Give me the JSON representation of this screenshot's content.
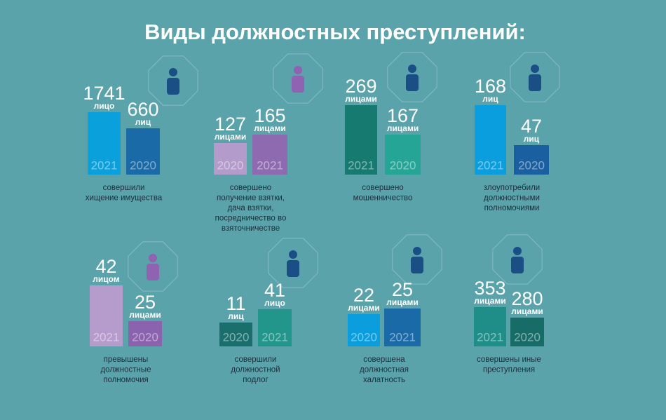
{
  "title": "Виды должностных преступлений:",
  "panels": [
    {
      "bars": [
        {
          "value": 1741,
          "unit": "лицо",
          "year": 2021
        },
        {
          "value": 660,
          "unit": "лиц",
          "year": 2020
        }
      ],
      "caption": [
        "совершили",
        "хищение имущества"
      ]
    },
    {
      "bars": [
        {
          "value": 127,
          "unit": "лицами",
          "year": 2020
        },
        {
          "value": 165,
          "unit": "лицами",
          "year": 2021
        }
      ],
      "caption": [
        "совершено",
        "получение взятки,",
        "дача взятки,",
        "посредничество во",
        "взяточничестве"
      ]
    },
    {
      "bars": [
        {
          "value": 269,
          "unit": "лицами",
          "year": 2021
        },
        {
          "value": 167,
          "unit": "лицами",
          "year": 2020
        }
      ],
      "caption": [
        "совершено",
        "мошенничество"
      ]
    },
    {
      "bars": [
        {
          "value": 168,
          "unit": "лиц",
          "year": 2021
        },
        {
          "value": 47,
          "unit": "лиц",
          "year": 2020
        }
      ],
      "caption": [
        "злоупотребили",
        "должностными",
        "полномочиями"
      ]
    },
    {
      "bars": [
        {
          "value": 42,
          "unit": "лицом",
          "year": 2021
        },
        {
          "value": 25,
          "unit": "лицами",
          "year": 2020
        }
      ],
      "caption": [
        "превышены",
        "должностные",
        "полномочия"
      ]
    },
    {
      "bars": [
        {
          "value": 11,
          "unit": "лиц",
          "year": 2020
        },
        {
          "value": 41,
          "unit": "лицо",
          "year": 2021
        }
      ],
      "caption": [
        "совершили",
        "должностной",
        "подлог"
      ]
    },
    {
      "bars": [
        {
          "value": 22,
          "unit": "лицами",
          "year": 2020
        },
        {
          "value": 25,
          "unit": "лицами",
          "year": 2021
        }
      ],
      "caption": [
        "совершена",
        "должностная",
        "халатность"
      ]
    },
    {
      "bars": [
        {
          "value": 353,
          "unit": "лицами",
          "year": 2021
        },
        {
          "value": 280,
          "unit": "лицами",
          "year": 2020
        }
      ],
      "caption": [
        "совершены иные",
        "преступления"
      ]
    }
  ]
}
